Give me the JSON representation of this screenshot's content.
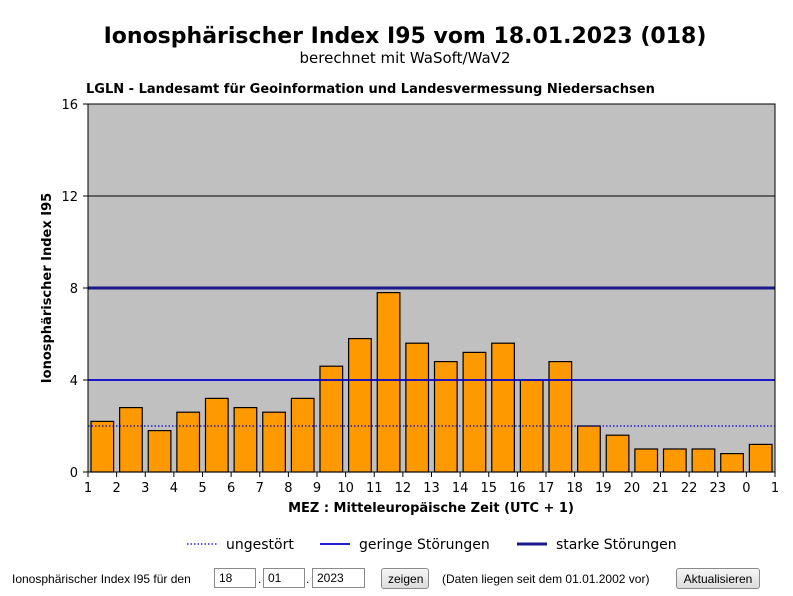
{
  "chart_data": {
    "type": "bar",
    "title": "Ionosphärischer Index I95 vom 18.01.2023 (018)",
    "subtitle": "berechnet mit WaSoft/WaV2",
    "source": "LGLN - Landesamt für Geoinformation und Landesvermessung Niedersachsen",
    "xlabel": "MEZ : Mitteleuropäische Zeit (UTC + 1)",
    "ylabel": "Ionosphärischer Index I95",
    "ylim": [
      0,
      16
    ],
    "yticks": [
      "0",
      "4",
      "8",
      "12",
      "16"
    ],
    "xticks": [
      "1",
      "2",
      "3",
      "4",
      "5",
      "6",
      "7",
      "8",
      "9",
      "10",
      "11",
      "12",
      "13",
      "14",
      "15",
      "16",
      "17",
      "18",
      "19",
      "20",
      "21",
      "22",
      "23",
      "0",
      "1"
    ],
    "values": [
      2.2,
      2.8,
      1.8,
      2.6,
      3.2,
      2.8,
      2.6,
      3.2,
      4.6,
      5.8,
      7.8,
      5.6,
      4.8,
      5.2,
      5.6,
      4.0,
      4.8,
      2.0,
      1.6,
      1.0,
      1.0,
      1.0,
      0.8,
      1.2
    ],
    "grid": true,
    "reference_lines": [
      {
        "name": "ungestört",
        "value": 2,
        "style": "dotted",
        "color": "#0000cc"
      },
      {
        "name": "geringe Störungen",
        "value": 4,
        "style": "solid",
        "color": "#0000cc"
      },
      {
        "name": "starke Störungen",
        "value": 8,
        "style": "thick",
        "color": "#1a1a8c"
      }
    ],
    "colors": {
      "bar": "#ff9900",
      "plot_background": "#c0c0c0",
      "gridline": "#000000"
    },
    "legend_position": "bottom"
  },
  "form": {
    "label": "Ionosphärischer Index I95 für den",
    "day": "18",
    "month": "01",
    "year": "2023",
    "sep1": ".",
    "sep2": ".",
    "show_button": "zeigen",
    "info": "(Daten liegen seit dem 01.01.2002 vor)",
    "refresh_button": "Aktualisieren"
  }
}
